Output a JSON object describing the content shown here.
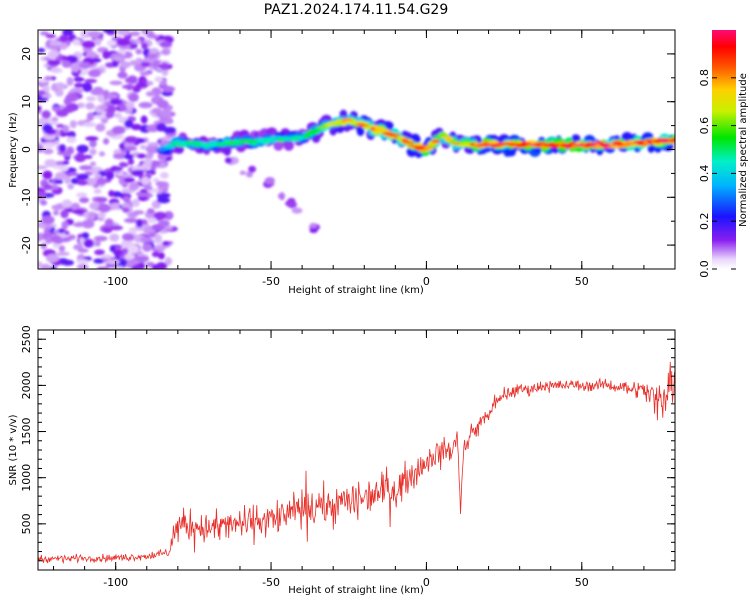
{
  "figure": {
    "title": "PAZ1.2024.174.11.54.G29"
  },
  "chart_data": [
    {
      "type": "heatmap",
      "xlabel": "Height of straight line (km)",
      "ylabel": "Frequency (Hz)",
      "xlim": [
        -125,
        80
      ],
      "ylim": [
        -25,
        25
      ],
      "xticks": [
        -100,
        -50,
        0,
        50
      ],
      "yticks": [
        -20,
        -10,
        0,
        10,
        20
      ],
      "colorbar": {
        "label": "Normalized spectral amplitude",
        "range": [
          0,
          1
        ],
        "ticks": [
          "0.0",
          "0.2",
          "0.4",
          "0.6",
          "0.8"
        ]
      },
      "ridge": {
        "x": [
          -85,
          -80,
          -70,
          -60,
          -50,
          -40,
          -35,
          -30,
          -25,
          -20,
          -15,
          -10,
          -5,
          0,
          5,
          10,
          20,
          30,
          40,
          50,
          60,
          70,
          80
        ],
        "frequency": [
          0,
          1.5,
          1,
          1.5,
          2,
          2.5,
          4,
          5.5,
          6,
          5,
          4,
          3,
          1,
          0,
          3,
          1,
          1,
          1,
          1,
          1,
          1,
          1.5,
          2
        ],
        "amplitude": [
          0.3,
          0.5,
          0.5,
          0.5,
          0.45,
          0.45,
          0.55,
          0.65,
          0.75,
          0.75,
          0.8,
          0.8,
          0.85,
          0.9,
          0.65,
          0.7,
          0.9,
          0.95,
          0.95,
          0.9,
          0.9,
          0.9,
          0.9
        ]
      },
      "noise_region_x": [
        -125,
        -82
      ]
    },
    {
      "type": "line",
      "xlabel": "Height of straight line (km)",
      "ylabel": "SNR (10 * v/v)",
      "xlim": [
        -125,
        80
      ],
      "ylim": [
        0,
        2600
      ],
      "xticks": [
        -100,
        -50,
        0,
        50
      ],
      "yticks": [
        500,
        1000,
        1500,
        2000,
        2500
      ],
      "series": [
        {
          "color": "#e8302a",
          "x": [
            -125,
            -110,
            -100,
            -90,
            -83,
            -80,
            -70,
            -60,
            -50,
            -40,
            -30,
            -20,
            -10,
            -5,
            0,
            5,
            8,
            10,
            11,
            12,
            15,
            20,
            25,
            30,
            40,
            50,
            60,
            70,
            75,
            78,
            80
          ],
          "mean": [
            120,
            130,
            130,
            150,
            180,
            500,
            450,
            500,
            550,
            650,
            700,
            800,
            900,
            1000,
            1200,
            1300,
            1300,
            1400,
            700,
            1300,
            1500,
            1700,
            1900,
            1950,
            2000,
            2000,
            2000,
            1950,
            1800,
            2100,
            1900
          ],
          "spread": [
            60,
            60,
            60,
            60,
            70,
            250,
            250,
            270,
            280,
            300,
            320,
            300,
            300,
            250,
            220,
            200,
            200,
            150,
            150,
            150,
            130,
            120,
            100,
            100,
            90,
            90,
            90,
            150,
            400,
            500,
            400
          ]
        }
      ]
    }
  ]
}
